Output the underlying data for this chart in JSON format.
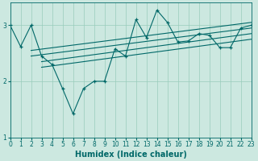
{
  "xlabel": "Humidex (Indice chaleur)",
  "bg_color": "#cce8e0",
  "line_color": "#006868",
  "grid_color": "#99ccbb",
  "data_x": [
    0,
    1,
    2,
    3,
    4,
    5,
    6,
    7,
    8,
    9,
    10,
    11,
    12,
    13,
    14,
    15,
    16,
    17,
    18,
    19,
    20,
    21,
    22,
    23
  ],
  "data_y": [
    3.0,
    2.62,
    3.0,
    2.45,
    2.3,
    1.87,
    1.42,
    1.87,
    2.0,
    2.0,
    2.58,
    2.45,
    3.1,
    2.78,
    3.27,
    3.05,
    2.7,
    2.72,
    2.85,
    2.82,
    2.6,
    2.6,
    2.95,
    3.0
  ],
  "channel_lines": [
    [
      2,
      2.45,
      23,
      2.95
    ],
    [
      2,
      2.55,
      23,
      3.05
    ],
    [
      3,
      2.35,
      23,
      2.85
    ],
    [
      3,
      2.25,
      23,
      2.75
    ]
  ],
  "xlim": [
    0,
    23
  ],
  "ylim": [
    1.0,
    3.4
  ],
  "yticks": [
    1,
    2,
    3
  ],
  "xticks": [
    0,
    1,
    2,
    3,
    4,
    5,
    6,
    7,
    8,
    9,
    10,
    11,
    12,
    13,
    14,
    15,
    16,
    17,
    18,
    19,
    20,
    21,
    22,
    23
  ],
  "tick_fontsize": 5.5,
  "label_fontsize": 7.0
}
